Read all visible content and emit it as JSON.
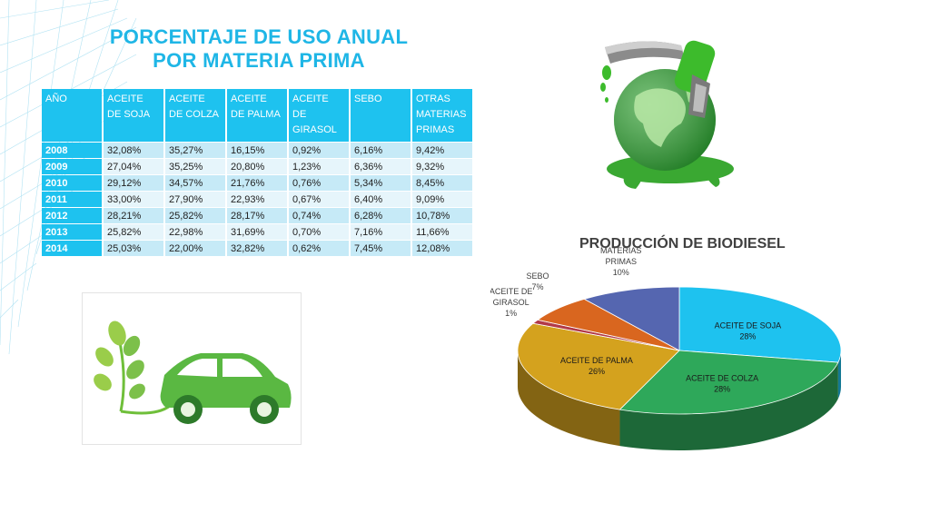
{
  "title": "PORCENTAJE DE USO ANUAL POR MATERIA PRIMA",
  "table": {
    "headers": [
      "AÑO",
      "ACEITE DE SOJA",
      "ACEITE DE COLZA",
      "ACEITE DE PALMA",
      "ACEITE DE GIRASOL",
      "SEBO",
      "OTRAS MATERIAS PRIMAS"
    ],
    "rows": [
      [
        "2008",
        "32,08%",
        "35,27%",
        "16,15%",
        "0,92%",
        "6,16%",
        "9,42%"
      ],
      [
        "2009",
        "27,04%",
        "35,25%",
        "20,80%",
        "1,23%",
        "6,36%",
        "9,32%"
      ],
      [
        "2010",
        "29,12%",
        "34,57%",
        "21,76%",
        "0,76%",
        "5,34%",
        "8,45%"
      ],
      [
        "2011",
        "33,00%",
        "27,90%",
        "22,93%",
        "0,67%",
        "6,40%",
        "9,09%"
      ],
      [
        "2012",
        "28,21%",
        "25,82%",
        "28,17%",
        "0,74%",
        "6,28%",
        "10,78%"
      ],
      [
        "2013",
        "25,82%",
        "22,98%",
        "31,69%",
        "0,70%",
        "7,16%",
        "11,66%"
      ],
      [
        "2014",
        "25,03%",
        "22,00%",
        "32,82%",
        "0,62%",
        "7,45%",
        "12,08%"
      ]
    ]
  },
  "images": {
    "globe": "fuel-nozzle-globe-icon",
    "car": "eco-car-icon"
  },
  "chart_data": {
    "type": "pie",
    "title": "PRODUCCIÓN DE BIODIESEL",
    "slices": [
      {
        "label": "ACEITE DE SOJA",
        "value": 28,
        "pct_text": "28%",
        "color": "#1ec2ef"
      },
      {
        "label": "ACEITE DE COLZA",
        "value": 28,
        "pct_text": "28%",
        "color": "#2ea85a"
      },
      {
        "label": "ACEITE DE PALMA",
        "value": 26,
        "pct_text": "26%",
        "color": "#d4a21e"
      },
      {
        "label": "ACEITE DE GIRASOL",
        "value": 1,
        "pct_text": "1%",
        "color": "#b23a48"
      },
      {
        "label": "SEBO",
        "value": 7,
        "pct_text": "7%",
        "color": "#d9661f"
      },
      {
        "label": "OTRAS MATERIAS PRIMAS",
        "value": 10,
        "pct_text": "10%",
        "color": "#5566b0"
      }
    ]
  }
}
